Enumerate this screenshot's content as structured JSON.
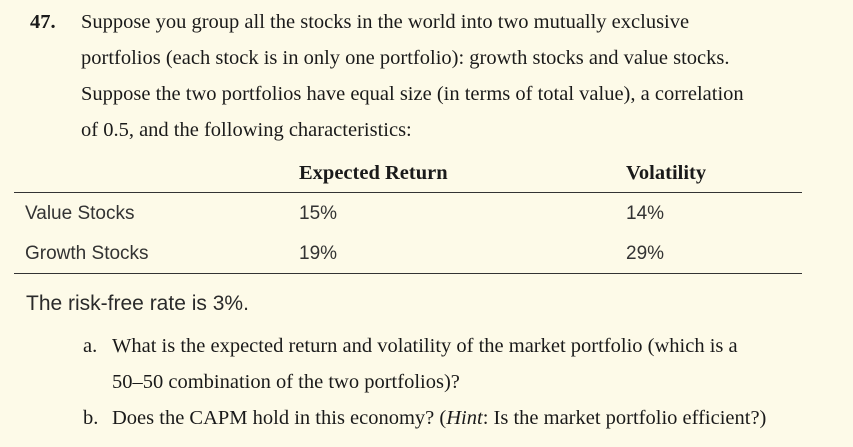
{
  "problem": {
    "number": "47.",
    "stem_lines": [
      "Suppose you group all the stocks in the world into two mutually exclusive",
      "portfolios (each stock is in only one portfolio): growth stocks and value stocks.",
      "Suppose the two portfolios have equal size (in terms of total value), a correlation",
      "of 0.5, and the following characteristics:"
    ]
  },
  "table": {
    "headers": [
      "",
      "Expected Return",
      "Volatility"
    ],
    "rows": [
      {
        "label": "Value Stocks",
        "expected_return": "15%",
        "volatility": "14%"
      },
      {
        "label": "Growth Stocks",
        "expected_return": "19%",
        "volatility": "29%"
      }
    ]
  },
  "risk_free": "The risk-free rate is 3%.",
  "parts": {
    "a": {
      "letter": "a.",
      "line1": "What is the expected return and volatility of the market portfolio (which is a",
      "line2": "50–50 combination of the two portfolios)?"
    },
    "b": {
      "letter": "b.",
      "text_before": "Does the CAPM hold in this economy? (",
      "hint_label": "Hint",
      "text_after": ": Is the market portfolio efficient?)"
    }
  }
}
